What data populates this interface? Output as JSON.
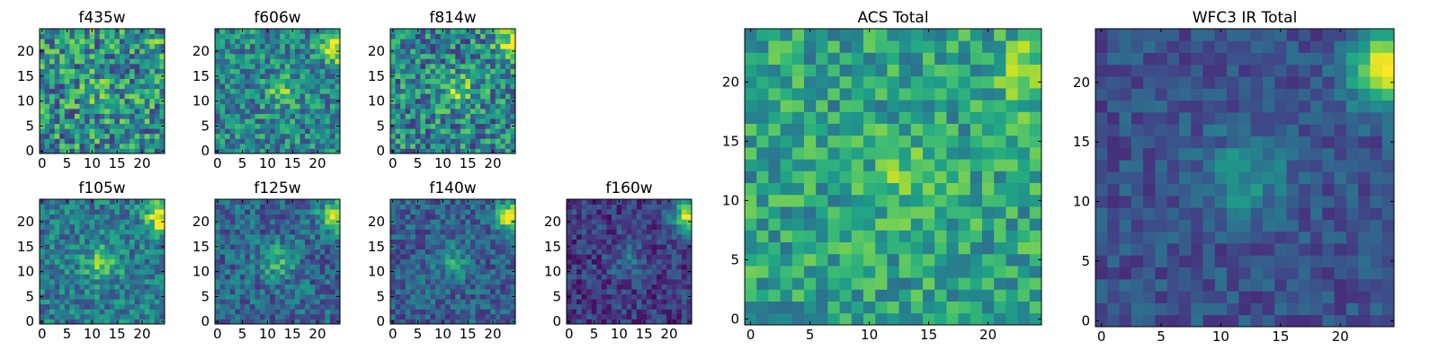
{
  "chart_data": [
    {
      "type": "heatmap",
      "title": "f435w",
      "seed": 11,
      "blob_center": [
        12,
        12
      ],
      "blob_amp": 0.15,
      "blob_width": 3,
      "corner_amp": 0.12,
      "corner_center": [
        24,
        21
      ],
      "noise": 0.55,
      "base": 0.45,
      "colormap_range": [
        0.15,
        0.9
      ],
      "xlim": [
        0,
        24
      ],
      "ylim": [
        0,
        24
      ],
      "xticks": [
        "0",
        "5",
        "10",
        "15",
        "20"
      ],
      "yticks": [
        "0",
        "5",
        "10",
        "15",
        "20"
      ]
    },
    {
      "type": "heatmap",
      "title": "f606w",
      "seed": 23,
      "blob_center": [
        13,
        12
      ],
      "blob_amp": 0.35,
      "blob_width": 2,
      "corner_amp": 0.6,
      "corner_center": [
        24,
        21
      ],
      "noise": 0.35,
      "base": 0.4,
      "colormap_range": [
        0.1,
        1.0
      ],
      "xlim": [
        0,
        24
      ],
      "ylim": [
        0,
        24
      ],
      "xticks": [
        "0",
        "5",
        "10",
        "15",
        "20"
      ],
      "yticks": [
        "0",
        "5",
        "10",
        "15",
        "20"
      ]
    },
    {
      "type": "heatmap",
      "title": "f814w",
      "seed": 37,
      "blob_center": [
        13,
        12
      ],
      "blob_amp": 0.3,
      "blob_width": 2.5,
      "corner_amp": 0.6,
      "corner_center": [
        24,
        21
      ],
      "noise": 0.4,
      "base": 0.42,
      "colormap_range": [
        0.05,
        1.0
      ],
      "xlim": [
        0,
        24
      ],
      "ylim": [
        0,
        24
      ],
      "xticks": [
        "0",
        "5",
        "10",
        "15",
        "20"
      ],
      "yticks": [
        "0",
        "5",
        "10",
        "15",
        "20"
      ]
    },
    {
      "type": "heatmap",
      "title": "f105w",
      "seed": 41,
      "blob_center": [
        12,
        12
      ],
      "blob_amp": 0.35,
      "blob_width": 2.5,
      "corner_amp": 0.65,
      "corner_center": [
        24,
        21
      ],
      "noise": 0.28,
      "base": 0.38,
      "colormap_range": [
        0.05,
        1.0
      ],
      "xlim": [
        0,
        24
      ],
      "ylim": [
        0,
        24
      ],
      "xticks": [
        "0",
        "5",
        "10",
        "15",
        "20"
      ],
      "yticks": [
        "0",
        "5",
        "10",
        "15",
        "20"
      ]
    },
    {
      "type": "heatmap",
      "title": "f125w",
      "seed": 53,
      "blob_center": [
        12,
        12
      ],
      "blob_amp": 0.3,
      "blob_width": 2.5,
      "corner_amp": 0.7,
      "corner_center": [
        24,
        21
      ],
      "noise": 0.25,
      "base": 0.33,
      "colormap_range": [
        0.0,
        1.0
      ],
      "xlim": [
        0,
        24
      ],
      "ylim": [
        0,
        24
      ],
      "xticks": [
        "0",
        "5",
        "10",
        "15",
        "20"
      ],
      "yticks": [
        "0",
        "5",
        "10",
        "15",
        "20"
      ]
    },
    {
      "type": "heatmap",
      "title": "f140w",
      "seed": 67,
      "blob_center": [
        12,
        12
      ],
      "blob_amp": 0.25,
      "blob_width": 2.5,
      "corner_amp": 0.72,
      "corner_center": [
        24,
        21
      ],
      "noise": 0.22,
      "base": 0.3,
      "colormap_range": [
        0.0,
        1.0
      ],
      "xlim": [
        0,
        24
      ],
      "ylim": [
        0,
        24
      ],
      "xticks": [
        "0",
        "5",
        "10",
        "15",
        "20"
      ],
      "yticks": [
        "0",
        "5",
        "10",
        "15",
        "20"
      ]
    },
    {
      "type": "heatmap",
      "title": "f160w",
      "seed": 79,
      "blob_center": [
        12,
        12
      ],
      "blob_amp": 0.18,
      "blob_width": 2.5,
      "corner_amp": 0.8,
      "corner_center": [
        24,
        21
      ],
      "noise": 0.2,
      "base": 0.18,
      "colormap_range": [
        0.0,
        1.0
      ],
      "xlim": [
        0,
        24
      ],
      "ylim": [
        0,
        24
      ],
      "xticks": [
        "0",
        "5",
        "10",
        "15",
        "20"
      ],
      "yticks": [
        "0",
        "5",
        "10",
        "15",
        "20"
      ]
    },
    {
      "type": "heatmap",
      "title": "ACS Total",
      "seed": 97,
      "blob_center": [
        13,
        12
      ],
      "blob_amp": 0.25,
      "blob_width": 2,
      "corner_amp": 0.3,
      "corner_center": [
        24,
        21
      ],
      "noise": 0.35,
      "base": 0.5,
      "colormap_range": [
        0.2,
        0.95
      ],
      "xlim": [
        0,
        24
      ],
      "ylim": [
        0,
        24
      ],
      "xticks": [
        "0",
        "5",
        "10",
        "15",
        "20"
      ],
      "yticks": [
        "0",
        "5",
        "10",
        "15",
        "20"
      ]
    },
    {
      "type": "heatmap",
      "title": "WFC3 IR Total",
      "seed": 113,
      "blob_center": [
        12,
        12
      ],
      "blob_amp": 0.25,
      "blob_width": 2.5,
      "corner_amp": 0.75,
      "corner_center": [
        24,
        21
      ],
      "noise": 0.15,
      "base": 0.25,
      "colormap_range": [
        0.0,
        1.0
      ],
      "xlim": [
        0,
        24
      ],
      "ylim": [
        0,
        24
      ],
      "xticks": [
        "0",
        "5",
        "10",
        "15",
        "20"
      ],
      "yticks": [
        "0",
        "5",
        "10",
        "15",
        "20"
      ]
    }
  ]
}
